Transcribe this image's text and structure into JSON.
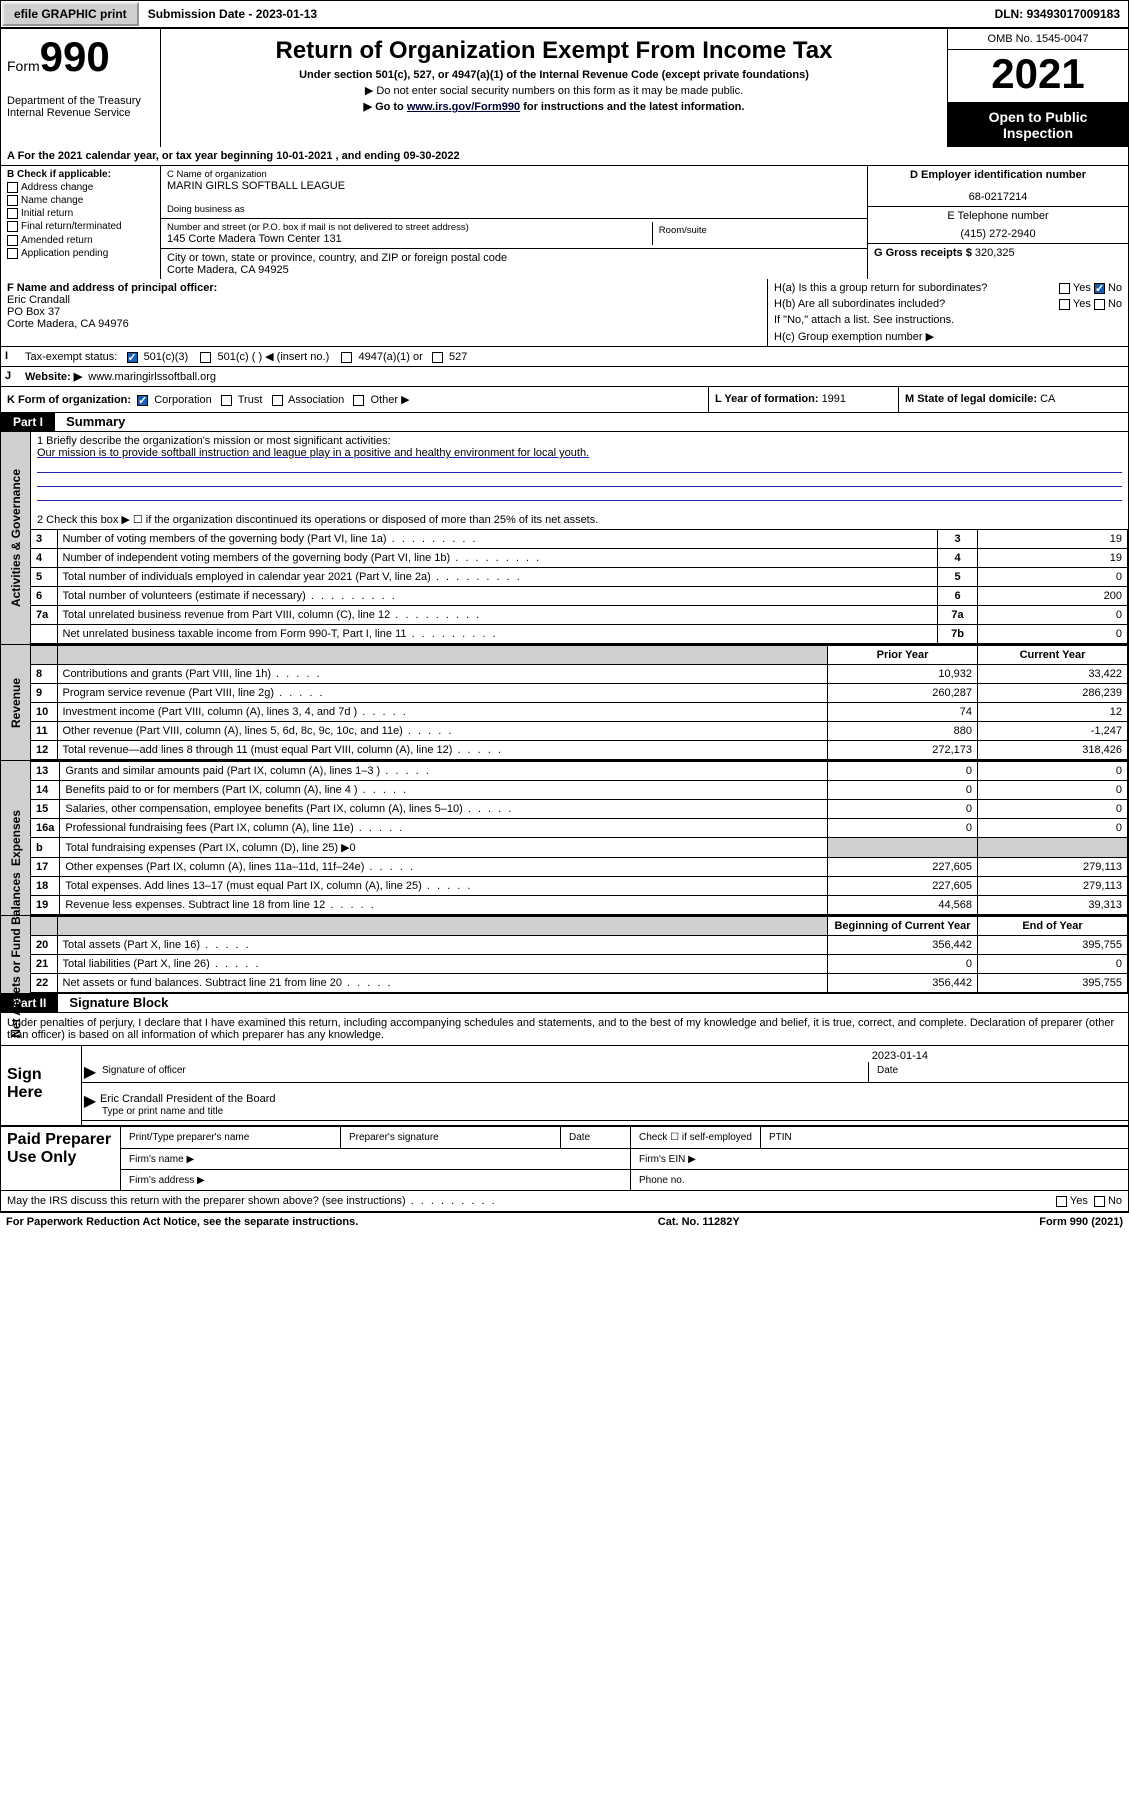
{
  "topbar": {
    "efile": "efile GRAPHIC print",
    "submission_label": "Submission Date - ",
    "submission_date": "2023-01-13",
    "dln_label": "DLN: ",
    "dln": "93493017009183"
  },
  "header": {
    "form_prefix": "Form",
    "form_num": "990",
    "dept": "Department of the Treasury\nInternal Revenue Service",
    "title": "Return of Organization Exempt From Income Tax",
    "subtitle": "Under section 501(c), 527, or 4947(a)(1) of the Internal Revenue Code (except private foundations)",
    "note1": "▶ Do not enter social security numbers on this form as it may be made public.",
    "note2_pre": "▶ Go to ",
    "note2_link": "www.irs.gov/Form990",
    "note2_post": " for instructions and the latest information.",
    "omb": "OMB No. 1545-0047",
    "year": "2021",
    "open": "Open to Public Inspection"
  },
  "row_a": {
    "text_pre": "A For the 2021 calendar year, or tax year beginning ",
    "begin": "10-01-2021",
    "text_mid": " , and ending ",
    "end": "09-30-2022"
  },
  "col_b": {
    "label": "B Check if applicable:",
    "opts": [
      "Address change",
      "Name change",
      "Initial return",
      "Final return/terminated",
      "Amended return",
      "Application pending"
    ]
  },
  "col_c": {
    "name_lbl": "C Name of organization",
    "name": "MARIN GIRLS SOFTBALL LEAGUE",
    "dba_lbl": "Doing business as",
    "dba": "",
    "addr_lbl": "Number and street (or P.O. box if mail is not delivered to street address)",
    "room_lbl": "Room/suite",
    "addr": "145 Corte Madera Town Center 131",
    "city_lbl": "City or town, state or province, country, and ZIP or foreign postal code",
    "city": "Corte Madera, CA  94925"
  },
  "col_d": {
    "ein_lbl": "D Employer identification number",
    "ein": "68-0217214",
    "tel_lbl": "E Telephone number",
    "tel": "(415) 272-2940",
    "gross_lbl": "G Gross receipts $ ",
    "gross": "320,325"
  },
  "principal": {
    "lbl": "F Name and address of principal officer:",
    "name": "Eric Crandall",
    "addr1": "PO Box 37",
    "addr2": "Corte Madera, CA  94976",
    "ha": "H(a)  Is this a group return for subordinates?",
    "ha_no": true,
    "hb": "H(b)  Are all subordinates included?",
    "hb_note": "If \"No,\" attach a list. See instructions.",
    "hc": "H(c)  Group exemption number ▶"
  },
  "row_i": {
    "lbl": "Tax-exempt status:",
    "c3_checked": true,
    "opts": [
      "501(c)(3)",
      "501(c) (  ) ◀ (insert no.)",
      "4947(a)(1) or",
      "527"
    ]
  },
  "row_j": {
    "lbl": "Website: ▶",
    "val": "www.maringirlssoftball.org"
  },
  "row_k": {
    "lbl": "K Form of organization:",
    "opts": [
      "Corporation",
      "Trust",
      "Association",
      "Other ▶"
    ],
    "corp_checked": true,
    "l_lbl": "L Year of formation: ",
    "l_val": "1991",
    "m_lbl": "M State of legal domicile: ",
    "m_val": "CA"
  },
  "part1": {
    "hdr": "Part I",
    "title": "Summary",
    "q1_lbl": "1   Briefly describe the organization's mission or most significant activities:",
    "q1_val": "Our mission is to provide softball instruction and league play in a positive and healthy environment for local youth.",
    "q2": "2   Check this box ▶ ☐  if the organization discontinued its operations or disposed of more than 25% of its net assets.",
    "lines_gov": [
      {
        "n": "3",
        "desc": "Number of voting members of the governing body (Part VI, line 1a)",
        "box": "3",
        "val": "19"
      },
      {
        "n": "4",
        "desc": "Number of independent voting members of the governing body (Part VI, line 1b)",
        "box": "4",
        "val": "19"
      },
      {
        "n": "5",
        "desc": "Total number of individuals employed in calendar year 2021 (Part V, line 2a)",
        "box": "5",
        "val": "0"
      },
      {
        "n": "6",
        "desc": "Total number of volunteers (estimate if necessary)",
        "box": "6",
        "val": "200"
      },
      {
        "n": "7a",
        "desc": "Total unrelated business revenue from Part VIII, column (C), line 12",
        "box": "7a",
        "val": "0"
      },
      {
        "n": "",
        "desc": "Net unrelated business taxable income from Form 990-T, Part I, line 11",
        "box": "7b",
        "val": "0"
      }
    ],
    "col_hdrs": {
      "prior": "Prior Year",
      "current": "Current Year"
    },
    "lines_rev": [
      {
        "n": "8",
        "desc": "Contributions and grants (Part VIII, line 1h)",
        "p": "10,932",
        "c": "33,422"
      },
      {
        "n": "9",
        "desc": "Program service revenue (Part VIII, line 2g)",
        "p": "260,287",
        "c": "286,239"
      },
      {
        "n": "10",
        "desc": "Investment income (Part VIII, column (A), lines 3, 4, and 7d )",
        "p": "74",
        "c": "12"
      },
      {
        "n": "11",
        "desc": "Other revenue (Part VIII, column (A), lines 5, 6d, 8c, 9c, 10c, and 11e)",
        "p": "880",
        "c": "-1,247"
      },
      {
        "n": "12",
        "desc": "Total revenue—add lines 8 through 11 (must equal Part VIII, column (A), line 12)",
        "p": "272,173",
        "c": "318,426"
      }
    ],
    "lines_exp": [
      {
        "n": "13",
        "desc": "Grants and similar amounts paid (Part IX, column (A), lines 1–3 )",
        "p": "0",
        "c": "0"
      },
      {
        "n": "14",
        "desc": "Benefits paid to or for members (Part IX, column (A), line 4 )",
        "p": "0",
        "c": "0"
      },
      {
        "n": "15",
        "desc": "Salaries, other compensation, employee benefits (Part IX, column (A), lines 5–10)",
        "p": "0",
        "c": "0"
      },
      {
        "n": "16a",
        "desc": "Professional fundraising fees (Part IX, column (A), line 11e)",
        "p": "0",
        "c": "0"
      },
      {
        "n": "b",
        "desc": "Total fundraising expenses (Part IX, column (D), line 25) ▶0",
        "p": "",
        "c": "",
        "grey": true
      },
      {
        "n": "17",
        "desc": "Other expenses (Part IX, column (A), lines 11a–11d, 11f–24e)",
        "p": "227,605",
        "c": "279,113"
      },
      {
        "n": "18",
        "desc": "Total expenses. Add lines 13–17 (must equal Part IX, column (A), line 25)",
        "p": "227,605",
        "c": "279,113"
      },
      {
        "n": "19",
        "desc": "Revenue less expenses. Subtract line 18 from line 12",
        "p": "44,568",
        "c": "39,313"
      }
    ],
    "col_hdrs2": {
      "prior": "Beginning of Current Year",
      "current": "End of Year"
    },
    "lines_net": [
      {
        "n": "20",
        "desc": "Total assets (Part X, line 16)",
        "p": "356,442",
        "c": "395,755"
      },
      {
        "n": "21",
        "desc": "Total liabilities (Part X, line 26)",
        "p": "0",
        "c": "0"
      },
      {
        "n": "22",
        "desc": "Net assets or fund balances. Subtract line 21 from line 20",
        "p": "356,442",
        "c": "395,755"
      }
    ]
  },
  "part2": {
    "hdr": "Part II",
    "title": "Signature Block",
    "declaration": "Under penalties of perjury, I declare that I have examined this return, including accompanying schedules and statements, and to the best of my knowledge and belief, it is true, correct, and complete. Declaration of preparer (other than officer) is based on all information of which preparer has any knowledge.",
    "sign_here": "Sign Here",
    "sig_officer": "Signature of officer",
    "sig_date": "2023-01-14",
    "date_lbl": "Date",
    "officer_name": "Eric Crandall President of the Board",
    "type_name_lbl": "Type or print name and title",
    "paid": "Paid Preparer Use Only",
    "prep_hdrs": [
      "Print/Type preparer's name",
      "Preparer's signature",
      "Date"
    ],
    "check_self": "Check ☐ if self-employed",
    "ptin": "PTIN",
    "firm_name": "Firm's name  ▶",
    "firm_ein": "Firm's EIN ▶",
    "firm_addr": "Firm's address ▶",
    "phone": "Phone no.",
    "discuss": "May the IRS discuss this return with the preparer shown above? (see instructions)"
  },
  "footer": {
    "left": "For Paperwork Reduction Act Notice, see the separate instructions.",
    "mid": "Cat. No. 11282Y",
    "right": "Form 990 (2021)"
  },
  "side_labels": {
    "gov": "Activities & Governance",
    "rev": "Revenue",
    "exp": "Expenses",
    "net": "Net Assets or Fund Balances"
  }
}
